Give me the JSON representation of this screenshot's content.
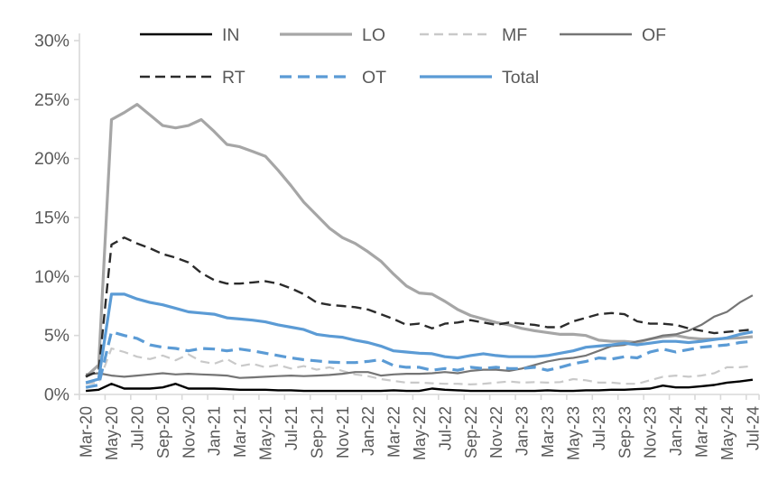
{
  "chart_data": {
    "type": "line",
    "title": "",
    "xlabel": "",
    "ylabel": "",
    "ylim": [
      0,
      30
    ],
    "y_tick_labels": [
      "0%",
      "5%",
      "10%",
      "15%",
      "20%",
      "25%",
      "30%"
    ],
    "y_tick_values": [
      0,
      5,
      10,
      15,
      20,
      25,
      30
    ],
    "grid": "off",
    "legend_position": "top",
    "axis_color": "#d9d9d9",
    "label_color": "#595959",
    "x_axis_tick_labels": [
      "Mar-20",
      "May-20",
      "Jul-20",
      "Sep-20",
      "Nov-20",
      "Jan-21",
      "Mar-21",
      "May-21",
      "Jul-21",
      "Sep-21",
      "Nov-21",
      "Jan-22",
      "Mar-22",
      "May-22",
      "Jul-22",
      "Sep-22",
      "Nov-22",
      "Jan-23",
      "Mar-23",
      "May-23",
      "Jul-23",
      "Sep-23",
      "Nov-23",
      "Jan-24",
      "Mar-24",
      "May-24",
      "Jul-24"
    ],
    "categories": [
      "Mar-20",
      "Apr-20",
      "May-20",
      "Jun-20",
      "Jul-20",
      "Aug-20",
      "Sep-20",
      "Oct-20",
      "Nov-20",
      "Dec-20",
      "Jan-21",
      "Feb-21",
      "Mar-21",
      "Apr-21",
      "May-21",
      "Jun-21",
      "Jul-21",
      "Aug-21",
      "Sep-21",
      "Oct-21",
      "Nov-21",
      "Dec-21",
      "Jan-22",
      "Feb-22",
      "Mar-22",
      "Apr-22",
      "May-22",
      "Jun-22",
      "Jul-22",
      "Aug-22",
      "Sep-22",
      "Oct-22",
      "Nov-22",
      "Dec-22",
      "Jan-23",
      "Feb-23",
      "Mar-23",
      "Apr-23",
      "May-23",
      "Jun-23",
      "Jul-23",
      "Aug-23",
      "Sep-23",
      "Oct-23",
      "Nov-23",
      "Dec-23",
      "Jan-24",
      "Feb-24",
      "Mar-24",
      "Apr-24",
      "May-24",
      "Jun-24",
      "Jul-24"
    ],
    "series": [
      {
        "name": "IN",
        "color": "#000000",
        "dash": "",
        "width": 2.4,
        "values": [
          0.3,
          0.4,
          0.9,
          0.5,
          0.5,
          0.5,
          0.6,
          0.9,
          0.5,
          0.5,
          0.5,
          0.45,
          0.4,
          0.4,
          0.4,
          0.35,
          0.35,
          0.3,
          0.3,
          0.3,
          0.3,
          0.3,
          0.3,
          0.3,
          0.35,
          0.3,
          0.3,
          0.5,
          0.4,
          0.35,
          0.3,
          0.3,
          0.3,
          0.3,
          0.3,
          0.3,
          0.35,
          0.3,
          0.3,
          0.35,
          0.35,
          0.4,
          0.4,
          0.45,
          0.5,
          0.75,
          0.6,
          0.6,
          0.7,
          0.8,
          1.0,
          1.1,
          1.25
        ]
      },
      {
        "name": "LO",
        "color": "#a6a6a6",
        "dash": "",
        "width": 3.2,
        "values": [
          1.5,
          2.5,
          23.3,
          23.9,
          24.6,
          23.7,
          22.8,
          22.6,
          22.8,
          23.3,
          22.3,
          21.2,
          21.0,
          20.6,
          20.2,
          19.0,
          17.7,
          16.3,
          15.2,
          14.1,
          13.3,
          12.8,
          12.1,
          11.3,
          10.2,
          9.2,
          8.6,
          8.5,
          7.9,
          7.2,
          6.7,
          6.4,
          6.1,
          5.9,
          5.6,
          5.4,
          5.25,
          5.1,
          5.1,
          5.0,
          4.6,
          4.5,
          4.5,
          4.4,
          4.7,
          4.9,
          5.0,
          4.8,
          4.7,
          4.7,
          4.75,
          4.8,
          4.9
        ]
      },
      {
        "name": "MF",
        "color": "#c9c9c9",
        "dash": "10 6",
        "width": 2.2,
        "values": [
          0.9,
          1.0,
          3.9,
          3.6,
          3.2,
          3.0,
          3.3,
          2.9,
          3.4,
          2.8,
          2.6,
          3.0,
          2.4,
          2.6,
          2.3,
          2.5,
          2.2,
          2.4,
          2.1,
          2.3,
          2.0,
          1.7,
          1.55,
          1.3,
          1.15,
          1.0,
          1.0,
          0.95,
          0.9,
          0.9,
          0.85,
          0.9,
          1.0,
          1.1,
          1.0,
          1.05,
          1.0,
          1.05,
          1.3,
          1.2,
          1.0,
          1.0,
          0.9,
          0.9,
          1.2,
          1.5,
          1.6,
          1.5,
          1.6,
          1.8,
          2.3,
          2.3,
          2.4
        ]
      },
      {
        "name": "OF",
        "color": "#757575",
        "dash": "",
        "width": 2.2,
        "values": [
          1.7,
          1.8,
          1.6,
          1.5,
          1.6,
          1.7,
          1.8,
          1.7,
          1.75,
          1.7,
          1.65,
          1.6,
          1.4,
          1.45,
          1.5,
          1.55,
          1.6,
          1.55,
          1.6,
          1.65,
          1.75,
          1.9,
          1.9,
          1.6,
          1.7,
          1.75,
          1.75,
          1.8,
          1.9,
          1.8,
          2.0,
          2.1,
          2.1,
          2.0,
          2.2,
          2.5,
          2.8,
          3.0,
          3.1,
          3.3,
          3.7,
          4.1,
          4.2,
          4.5,
          4.7,
          5.0,
          5.1,
          5.4,
          5.9,
          6.6,
          7.0,
          7.8,
          8.4
        ]
      },
      {
        "name": "RT",
        "color": "#2b2b2b",
        "dash": "11 6",
        "width": 2.4,
        "values": [
          1.5,
          2.0,
          12.7,
          13.3,
          12.8,
          12.4,
          11.9,
          11.6,
          11.2,
          10.3,
          9.7,
          9.4,
          9.4,
          9.5,
          9.6,
          9.4,
          9.0,
          8.5,
          7.8,
          7.6,
          7.5,
          7.4,
          7.2,
          6.8,
          6.4,
          5.9,
          6.0,
          5.6,
          6.0,
          6.1,
          6.3,
          6.1,
          5.9,
          6.1,
          6.0,
          5.9,
          5.7,
          5.7,
          6.2,
          6.5,
          6.8,
          6.9,
          6.8,
          6.2,
          6.0,
          6.0,
          5.9,
          5.6,
          5.4,
          5.2,
          5.3,
          5.4,
          5.5
        ]
      },
      {
        "name": "OT",
        "color": "#5b9bd5",
        "dash": "13 7",
        "width": 3.2,
        "values": [
          0.6,
          0.8,
          5.3,
          5.0,
          4.75,
          4.2,
          4.0,
          3.9,
          3.7,
          3.9,
          3.85,
          3.7,
          3.85,
          3.7,
          3.5,
          3.3,
          3.1,
          2.95,
          2.85,
          2.75,
          2.7,
          2.7,
          2.8,
          2.95,
          2.45,
          2.3,
          2.3,
          2.05,
          2.2,
          2.05,
          2.3,
          2.2,
          2.3,
          2.2,
          2.2,
          2.3,
          2.05,
          2.3,
          2.6,
          2.8,
          3.1,
          3.0,
          3.2,
          3.1,
          3.6,
          3.85,
          3.6,
          3.8,
          4.0,
          4.1,
          4.2,
          4.4,
          4.5
        ]
      },
      {
        "name": "Total",
        "color": "#5b9bd5",
        "dash": "",
        "width": 3.2,
        "values": [
          1.0,
          1.3,
          8.5,
          8.5,
          8.1,
          7.8,
          7.6,
          7.3,
          7.0,
          6.9,
          6.8,
          6.5,
          6.4,
          6.3,
          6.15,
          5.9,
          5.7,
          5.5,
          5.1,
          4.95,
          4.85,
          4.6,
          4.4,
          4.1,
          3.7,
          3.6,
          3.5,
          3.45,
          3.2,
          3.1,
          3.3,
          3.45,
          3.3,
          3.2,
          3.2,
          3.2,
          3.3,
          3.5,
          3.7,
          4.0,
          4.1,
          4.2,
          4.35,
          4.2,
          4.35,
          4.5,
          4.5,
          4.4,
          4.5,
          4.65,
          4.8,
          5.1,
          5.3
        ]
      }
    ],
    "legend": {
      "row1": [
        "IN",
        "LO",
        "MF",
        "OF"
      ],
      "row2": [
        "RT",
        "OT",
        "Total"
      ]
    }
  }
}
